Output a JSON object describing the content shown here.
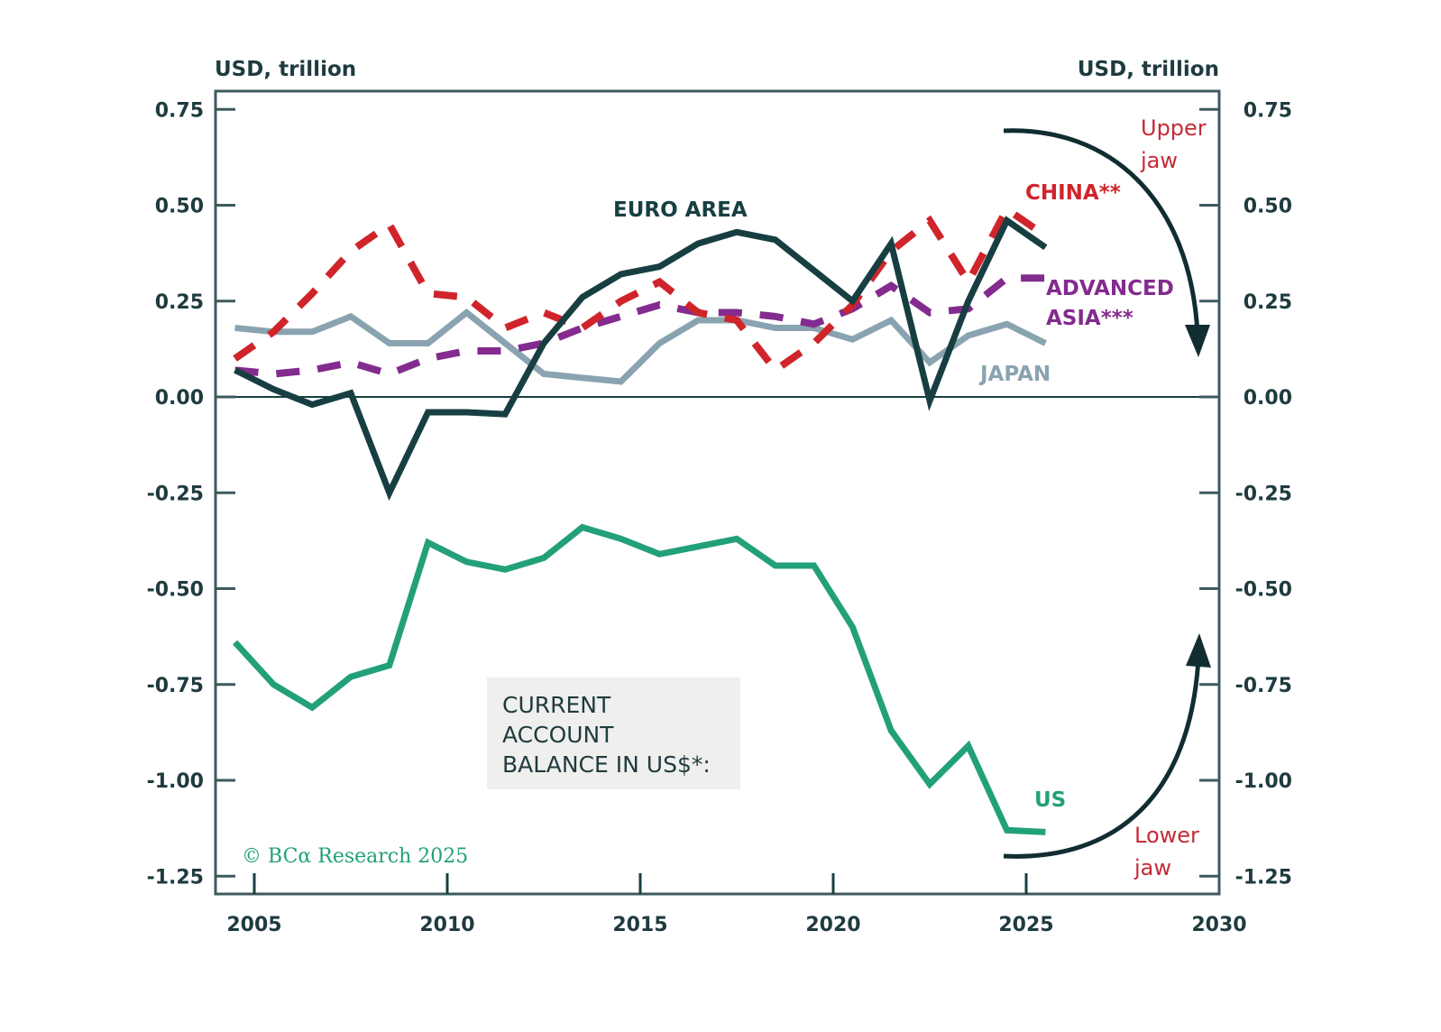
{
  "chart_data": {
    "type": "line",
    "title": "",
    "xlabel": "",
    "ylabel_left": "USD, trillion",
    "ylabel_right": "USD, trillion",
    "xlim": [
      2004,
      2030
    ],
    "ylim": [
      -1.3,
      0.8
    ],
    "x_ticks": [
      2005,
      2010,
      2015,
      2020,
      2025,
      2030
    ],
    "x_tick_labels": [
      "2005",
      "2010",
      "2015",
      "2020",
      "2025",
      "2030"
    ],
    "y_ticks": [
      0.75,
      0.5,
      0.25,
      0.0,
      -0.25,
      -0.5,
      -0.75,
      -1.0,
      -1.25
    ],
    "y_tick_labels": [
      "0.75",
      "0.50",
      "0.25",
      "0.00",
      "-0.25",
      "-0.50",
      "-0.75",
      "-1.00",
      "-1.25"
    ],
    "zero_line": true,
    "grid": false,
    "x": [
      2004,
      2005,
      2006,
      2007,
      2008,
      2009,
      2010,
      2011,
      2012,
      2013,
      2014,
      2015,
      2016,
      2017,
      2018,
      2019,
      2020,
      2021,
      2022,
      2023,
      2024,
      2025
    ],
    "x_offset_years": 0.5,
    "series": [
      {
        "name": "US",
        "label": "US",
        "color": "#22a07a",
        "dashed": false,
        "values": [
          -0.64,
          -0.75,
          -0.81,
          -0.73,
          -0.7,
          -0.38,
          -0.43,
          -0.45,
          -0.42,
          -0.34,
          -0.37,
          -0.41,
          -0.39,
          -0.37,
          -0.44,
          -0.44,
          -0.6,
          -0.87,
          -1.01,
          -0.91,
          -1.13,
          -1.135
        ]
      },
      {
        "name": "Euro Area",
        "label": "EURO AREA",
        "color": "#173f42",
        "dashed": false,
        "values": [
          0.07,
          0.02,
          -0.02,
          0.01,
          -0.25,
          -0.04,
          -0.04,
          -0.045,
          0.14,
          0.26,
          0.32,
          0.34,
          0.4,
          0.43,
          0.41,
          0.33,
          0.25,
          0.4,
          -0.01,
          0.25,
          0.46,
          0.39
        ]
      },
      {
        "name": "China",
        "label": "CHINA**",
        "color": "#d0242b",
        "dashed": true,
        "values": [
          0.1,
          0.17,
          0.27,
          0.38,
          0.45,
          0.27,
          0.26,
          0.18,
          0.22,
          0.18,
          0.25,
          0.3,
          0.22,
          0.2,
          0.07,
          0.14,
          0.24,
          0.38,
          0.46,
          0.3,
          0.49,
          0.42
        ]
      },
      {
        "name": "Advanced Asia",
        "label": "ADVANCED ASIA***",
        "color": "#832b8e",
        "dashed": true,
        "values": [
          0.07,
          0.06,
          0.07,
          0.09,
          0.06,
          0.1,
          0.12,
          0.12,
          0.14,
          0.18,
          0.21,
          0.24,
          0.22,
          0.22,
          0.21,
          0.19,
          0.23,
          0.29,
          0.22,
          0.23,
          0.31,
          0.31
        ]
      },
      {
        "name": "Japan",
        "label": "JAPAN",
        "color": "#8aa3b0",
        "dashed": false,
        "values": [
          0.18,
          0.17,
          0.17,
          0.21,
          0.14,
          0.14,
          0.22,
          0.14,
          0.06,
          0.05,
          0.04,
          0.14,
          0.2,
          0.2,
          0.18,
          0.18,
          0.15,
          0.2,
          0.09,
          0.16,
          0.19,
          0.14
        ]
      }
    ],
    "legend": {
      "title_lines": [
        "CURRENT",
        "ACCOUNT",
        "BALANCE IN US$*:"
      ],
      "placement": "center-bottom",
      "background": "#efefed"
    },
    "annotations": [
      {
        "id": "upper-jaw",
        "text_lines": [
          "Upper",
          "jaw"
        ],
        "color": "#c42b37",
        "arrow": "down",
        "placement": "top-right"
      },
      {
        "id": "lower-jaw",
        "text_lines": [
          "Lower",
          "jaw"
        ],
        "color": "#c42b37",
        "arrow": "up",
        "placement": "bottom-right"
      }
    ],
    "credit": "© BCα Research 2025",
    "colors": {
      "axis": "#3d5a5e",
      "text": "#1f3b3f",
      "arrow": "#112d31",
      "credit": "#22a07a"
    }
  }
}
